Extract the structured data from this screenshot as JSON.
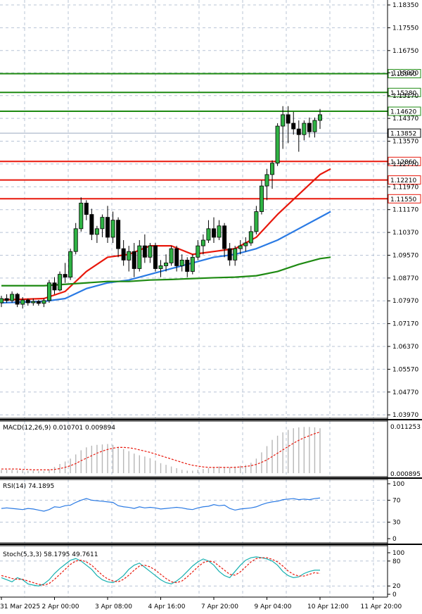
{
  "chart_data": {
    "type": "candlestick",
    "price_axis": {
      "ticks": [
        "1.18350",
        "1.17550",
        "1.16750",
        "1.15970",
        "1.15170",
        "1.14370",
        "1.13570",
        "1.12770",
        "1.11970",
        "1.11170",
        "1.10370",
        "1.09570",
        "1.08770",
        "1.07970",
        "1.07170",
        "1.06370",
        "1.05570",
        "1.04770",
        "1.03970"
      ],
      "range": [
        1.039,
        1.184
      ]
    },
    "time_axis": {
      "labels": [
        "31 Mar 2025",
        "2 Apr 00:00",
        "3 Apr 08:00",
        "4 Apr 16:00",
        "7 Apr 20:00",
        "9 Apr 04:00",
        "10 Apr 12:00",
        "11 Apr 20:00"
      ],
      "label_positions": [
        0,
        10,
        20,
        30,
        40,
        50,
        60,
        70
      ]
    },
    "candles": [
      [
        1.079,
        1.0815,
        1.0775,
        1.0805
      ],
      [
        1.0805,
        1.082,
        1.079,
        1.0798
      ],
      [
        1.0798,
        1.083,
        1.079,
        1.082
      ],
      [
        1.082,
        1.0825,
        1.0775,
        1.0785
      ],
      [
        1.0785,
        1.081,
        1.077,
        1.08
      ],
      [
        1.08,
        1.0805,
        1.078,
        1.079
      ],
      [
        1.079,
        1.0805,
        1.078,
        1.0795
      ],
      [
        1.0795,
        1.08,
        1.078,
        1.0788
      ],
      [
        1.0788,
        1.0805,
        1.0775,
        1.0798
      ],
      [
        1.0798,
        1.087,
        1.079,
        1.086
      ],
      [
        1.086,
        1.088,
        1.082,
        1.0835
      ],
      [
        1.0835,
        1.09,
        1.083,
        1.089
      ],
      [
        1.089,
        1.093,
        1.086,
        1.088
      ],
      [
        1.088,
        1.098,
        1.087,
        1.097
      ],
      [
        1.097,
        1.107,
        1.096,
        1.105
      ],
      [
        1.105,
        1.116,
        1.104,
        1.114
      ],
      [
        1.114,
        1.115,
        1.108,
        1.11
      ],
      [
        1.11,
        1.112,
        1.101,
        1.103
      ],
      [
        1.103,
        1.106,
        1.1,
        1.105
      ],
      [
        1.105,
        1.11,
        1.102,
        1.109
      ],
      [
        1.109,
        1.113,
        1.1,
        1.102
      ],
      [
        1.102,
        1.111,
        1.1,
        1.108
      ],
      [
        1.108,
        1.109,
        1.095,
        1.098
      ],
      [
        1.098,
        1.101,
        1.092,
        1.094
      ],
      [
        1.094,
        1.099,
        1.09,
        1.097
      ],
      [
        1.097,
        1.1,
        1.088,
        1.091
      ],
      [
        1.091,
        1.101,
        1.09,
        1.099
      ],
      [
        1.099,
        1.103,
        1.093,
        1.095
      ],
      [
        1.095,
        1.1,
        1.093,
        1.099
      ],
      [
        1.099,
        1.1,
        1.09,
        1.091
      ],
      [
        1.091,
        1.094,
        1.088,
        1.092
      ],
      [
        1.092,
        1.096,
        1.09,
        1.093
      ],
      [
        1.093,
        1.099,
        1.092,
        1.098
      ],
      [
        1.098,
        1.099,
        1.09,
        1.092
      ],
      [
        1.092,
        1.096,
        1.09,
        1.094
      ],
      [
        1.094,
        1.095,
        1.088,
        1.09
      ],
      [
        1.09,
        1.096,
        1.089,
        1.095
      ],
      [
        1.095,
        1.101,
        1.094,
        1.099
      ],
      [
        1.099,
        1.103,
        1.096,
        1.101
      ],
      [
        1.101,
        1.108,
        1.1,
        1.105
      ],
      [
        1.105,
        1.109,
        1.1,
        1.102
      ],
      [
        1.102,
        1.108,
        1.101,
        1.106
      ],
      [
        1.106,
        1.107,
        1.095,
        1.098
      ],
      [
        1.098,
        1.1,
        1.092,
        1.094
      ],
      [
        1.094,
        1.099,
        1.092,
        1.098
      ],
      [
        1.098,
        1.101,
        1.096,
        1.099
      ],
      [
        1.099,
        1.102,
        1.097,
        1.1
      ],
      [
        1.1,
        1.106,
        1.099,
        1.104
      ],
      [
        1.104,
        1.113,
        1.103,
        1.111
      ],
      [
        1.111,
        1.122,
        1.11,
        1.12
      ],
      [
        1.12,
        1.126,
        1.115,
        1.124
      ],
      [
        1.124,
        1.129,
        1.119,
        1.128
      ],
      [
        1.128,
        1.142,
        1.127,
        1.141
      ],
      [
        1.141,
        1.148,
        1.133,
        1.145
      ],
      [
        1.145,
        1.148,
        1.135,
        1.142
      ],
      [
        1.142,
        1.146,
        1.138,
        1.14
      ],
      [
        1.14,
        1.143,
        1.132,
        1.138
      ],
      [
        1.138,
        1.143,
        1.136,
        1.142
      ],
      [
        1.142,
        1.144,
        1.137,
        1.139
      ],
      [
        1.139,
        1.144,
        1.137,
        1.143
      ],
      [
        1.143,
        1.147,
        1.14,
        1.145
      ]
    ],
    "moving_averages": [
      {
        "color": "#e8180c",
        "x": [
          0,
          8,
          12,
          16,
          20,
          24,
          28,
          32,
          36,
          40,
          44,
          48,
          52,
          56,
          60,
          62
        ],
        "y": [
          1.08,
          1.0805,
          1.083,
          1.09,
          1.095,
          1.096,
          1.099,
          1.099,
          1.096,
          1.097,
          1.098,
          1.102,
          1.11,
          1.117,
          1.124,
          1.126
        ]
      },
      {
        "color": "#2a7ae4",
        "x": [
          0,
          8,
          12,
          16,
          20,
          24,
          28,
          32,
          36,
          40,
          44,
          48,
          52,
          56,
          60,
          62
        ],
        "y": [
          1.079,
          1.0795,
          1.0805,
          1.084,
          1.086,
          1.087,
          1.089,
          1.091,
          1.093,
          1.095,
          1.096,
          1.098,
          1.101,
          1.105,
          1.109,
          1.111
        ]
      },
      {
        "color": "#1e8a12",
        "x": [
          0,
          8,
          12,
          16,
          20,
          24,
          28,
          32,
          36,
          40,
          44,
          48,
          52,
          56,
          60,
          62
        ],
        "y": [
          1.085,
          1.085,
          1.0855,
          1.086,
          1.0865,
          1.0865,
          1.087,
          1.0872,
          1.0875,
          1.0878,
          1.088,
          1.0885,
          1.09,
          1.0925,
          1.0945,
          1.095
        ]
      }
    ],
    "horizontal_levels": [
      {
        "value": "1.15940",
        "color": "#1e8a12"
      },
      {
        "value": "1.15280",
        "color": "#1e8a12"
      },
      {
        "value": "1.14620",
        "color": "#1e8a12"
      },
      {
        "value": "1.12860",
        "color": "#e8180c"
      },
      {
        "value": "1.12210",
        "color": "#e8180c"
      },
      {
        "value": "1.11550",
        "color": "#e8180c"
      }
    ],
    "current_price": "1.13852",
    "macd": {
      "label": "MACD(12,26,9) 0.010701 0.009894",
      "ticks": [
        "0.011253",
        "0.000895"
      ],
      "range": [
        0.0,
        0.0115
      ],
      "histogram": [
        0.0008,
        0.0008,
        0.0008,
        0.0007,
        0.0007,
        0.0006,
        0.0006,
        0.0005,
        0.0005,
        0.0009,
        0.0015,
        0.0022,
        0.0028,
        0.0035,
        0.0045,
        0.0055,
        0.0062,
        0.0066,
        0.0068,
        0.0069,
        0.007,
        0.0068,
        0.0063,
        0.0058,
        0.0053,
        0.0047,
        0.0043,
        0.004,
        0.0036,
        0.003,
        0.0024,
        0.002,
        0.0016,
        0.0012,
        0.0008,
        0.0006,
        0.0006,
        0.0008,
        0.001,
        0.0012,
        0.0014,
        0.0016,
        0.0015,
        0.0014,
        0.0016,
        0.0018,
        0.002,
        0.0025,
        0.0035,
        0.005,
        0.0065,
        0.008,
        0.009,
        0.0098,
        0.0104,
        0.0108,
        0.011,
        0.0111,
        0.0111,
        0.011,
        0.0108
      ],
      "signal": [
        0.001,
        0.001,
        0.001,
        0.001,
        0.0009,
        0.0009,
        0.0008,
        0.0008,
        0.0008,
        0.0008,
        0.0009,
        0.0011,
        0.0014,
        0.0018,
        0.0023,
        0.003,
        0.0036,
        0.0042,
        0.0048,
        0.0053,
        0.0057,
        0.006,
        0.0062,
        0.0062,
        0.0061,
        0.0059,
        0.0056,
        0.0053,
        0.005,
        0.0046,
        0.0042,
        0.0038,
        0.0034,
        0.003,
        0.0026,
        0.0022,
        0.0019,
        0.0017,
        0.0015,
        0.0014,
        0.0014,
        0.0014,
        0.0014,
        0.0014,
        0.0014,
        0.0015,
        0.0016,
        0.0018,
        0.0021,
        0.0026,
        0.0032,
        0.004,
        0.0048,
        0.0056,
        0.0064,
        0.0072,
        0.0079,
        0.0085,
        0.009,
        0.0095,
        0.0099
      ]
    },
    "rsi": {
      "label": "RSI(14) 74.1895",
      "ticks": [
        "100",
        "70",
        "30",
        "0"
      ],
      "range": [
        0,
        100
      ],
      "values": [
        55,
        56,
        55,
        54,
        53,
        55,
        54,
        52,
        50,
        53,
        58,
        57,
        60,
        61,
        66,
        70,
        73,
        70,
        69,
        68,
        67,
        66,
        60,
        58,
        57,
        55,
        58,
        56,
        57,
        56,
        54,
        55,
        56,
        57,
        56,
        54,
        53,
        56,
        58,
        59,
        62,
        60,
        61,
        55,
        52,
        54,
        55,
        56,
        58,
        62,
        65,
        67,
        68,
        71,
        72,
        73,
        71,
        72,
        71,
        73,
        74
      ]
    },
    "stoch": {
      "label": "Stoch(5,3,3) 58.1795 49.7611",
      "ticks": [
        "100",
        "80",
        "20",
        "0"
      ],
      "range": [
        0,
        100
      ],
      "k": [
        40,
        35,
        30,
        40,
        35,
        25,
        22,
        20,
        25,
        35,
        50,
        62,
        72,
        82,
        86,
        80,
        70,
        60,
        45,
        35,
        30,
        28,
        35,
        45,
        60,
        70,
        75,
        65,
        55,
        45,
        35,
        28,
        25,
        32,
        42,
        55,
        68,
        78,
        85,
        80,
        70,
        55,
        45,
        40,
        55,
        70,
        82,
        88,
        90,
        88,
        85,
        80,
        70,
        55,
        45,
        40,
        42,
        50,
        55,
        58,
        58
      ],
      "d": [
        45,
        42,
        38,
        36,
        36,
        32,
        28,
        24,
        22,
        26,
        36,
        48,
        60,
        72,
        80,
        82,
        78,
        70,
        58,
        46,
        37,
        32,
        30,
        36,
        46,
        58,
        68,
        70,
        66,
        58,
        48,
        38,
        30,
        28,
        32,
        42,
        54,
        66,
        76,
        80,
        78,
        68,
        58,
        48,
        46,
        54,
        66,
        78,
        86,
        88,
        88,
        84,
        78,
        68,
        56,
        48,
        44,
        44,
        48,
        52,
        50
      ]
    }
  }
}
